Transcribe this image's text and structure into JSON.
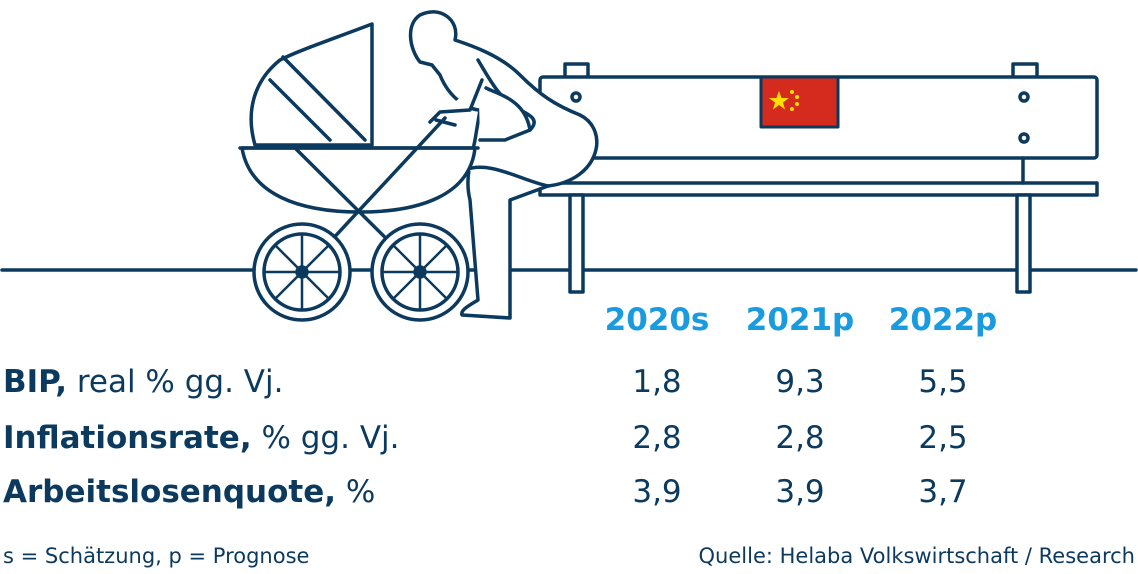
{
  "table": {
    "columns": [
      "2020s",
      "2021p",
      "2022p"
    ],
    "rows": [
      {
        "bold": "BIP,",
        "rest": " real % gg. Vj.",
        "values": [
          "1,8",
          "9,3",
          "5,5"
        ]
      },
      {
        "bold": "Inflationsrate,",
        "rest": " % gg. Vj.",
        "values": [
          "2,8",
          "2,8",
          "2,5"
        ]
      },
      {
        "bold": "Arbeitslosenquote,",
        "rest": " %",
        "values": [
          "3,9",
          "3,9",
          "3,7"
        ]
      }
    ]
  },
  "footer": {
    "note": "s = Schätzung, p = Prognose",
    "source": "Quelle: Helaba Volkswirtschaft / Research"
  }
}
